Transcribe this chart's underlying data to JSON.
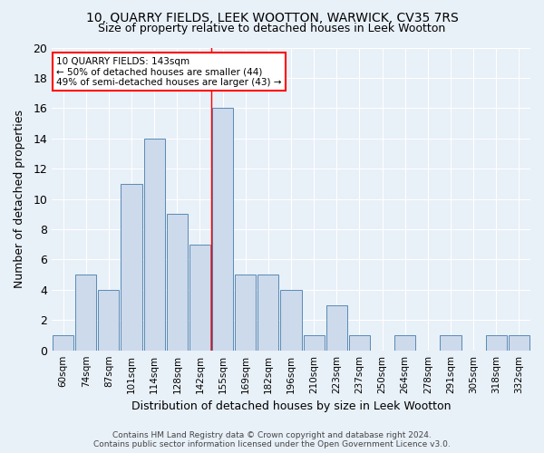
{
  "title": "10, QUARRY FIELDS, LEEK WOOTTON, WARWICK, CV35 7RS",
  "subtitle": "Size of property relative to detached houses in Leek Wootton",
  "xlabel": "Distribution of detached houses by size in Leek Wootton",
  "ylabel": "Number of detached properties",
  "bar_labels": [
    "60sqm",
    "74sqm",
    "87sqm",
    "101sqm",
    "114sqm",
    "128sqm",
    "142sqm",
    "155sqm",
    "169sqm",
    "182sqm",
    "196sqm",
    "210sqm",
    "223sqm",
    "237sqm",
    "250sqm",
    "264sqm",
    "278sqm",
    "291sqm",
    "305sqm",
    "318sqm",
    "332sqm"
  ],
  "bar_values": [
    1,
    5,
    4,
    11,
    14,
    9,
    7,
    16,
    5,
    5,
    4,
    1,
    3,
    1,
    0,
    1,
    0,
    1,
    0,
    1,
    1
  ],
  "bar_color": "#ccdaeb",
  "bar_edge_color": "#5a8ab5",
  "background_color": "#e8f0f8",
  "grid_color": "#ffffff",
  "red_line_x": 6.5,
  "annotation_title": "10 QUARRY FIELDS: 143sqm",
  "annotation_line1": "← 50% of detached houses are smaller (44)",
  "annotation_line2": "49% of semi-detached houses are larger (43) →",
  "annotation_box_color": "white",
  "annotation_box_edge_color": "red",
  "ylim": [
    0,
    20
  ],
  "yticks": [
    0,
    2,
    4,
    6,
    8,
    10,
    12,
    14,
    16,
    18,
    20
  ],
  "footer1": "Contains HM Land Registry data © Crown copyright and database right 2024.",
  "footer2": "Contains public sector information licensed under the Open Government Licence v3.0."
}
